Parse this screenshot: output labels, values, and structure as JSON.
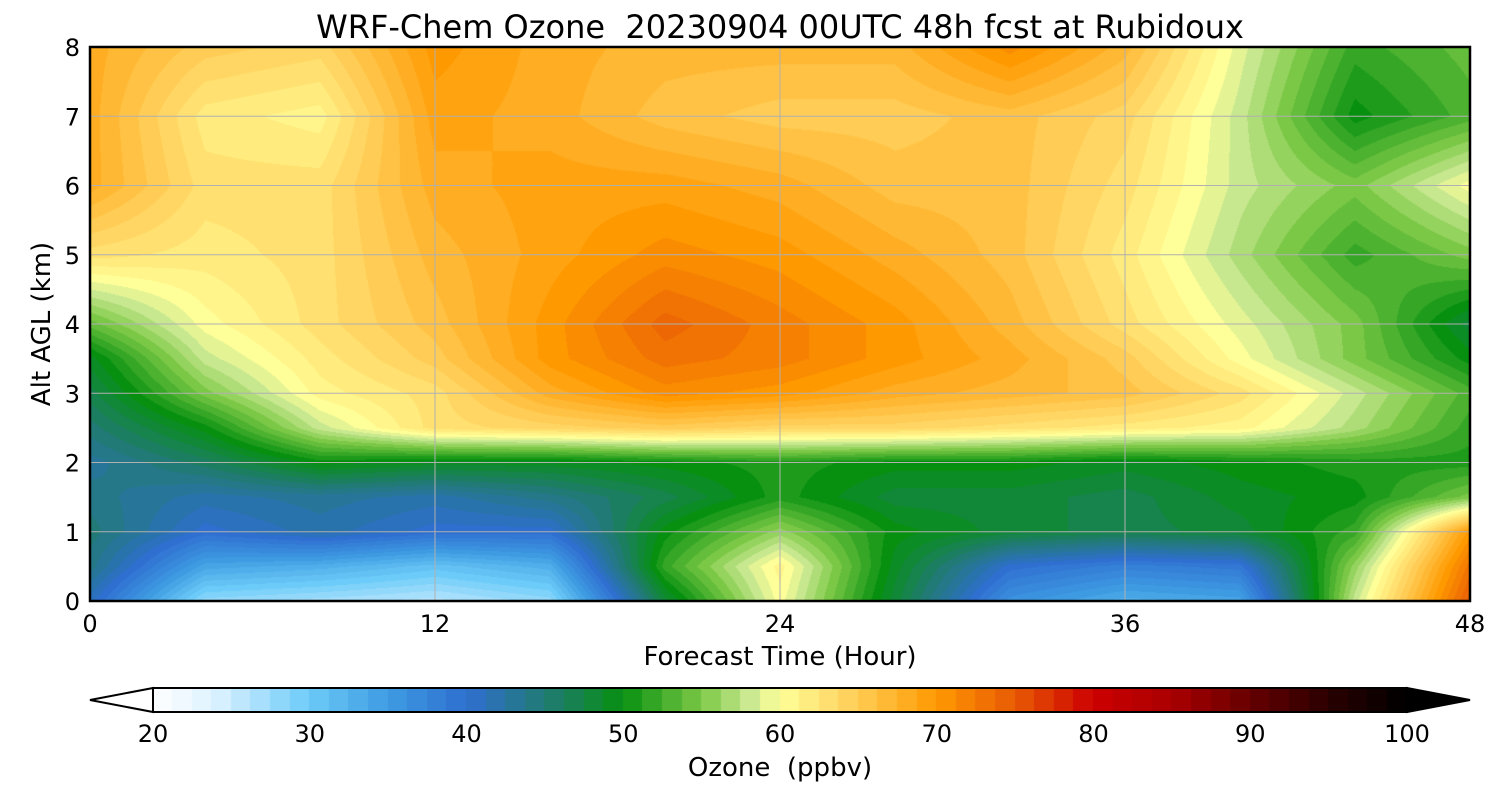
{
  "chart_data": {
    "type": "heatmap",
    "title": "WRF-Chem Ozone  20230904 00UTC 48h fcst at Rubidoux",
    "xlabel": "Forecast Time (Hour)",
    "ylabel": "Alt AGL (km)",
    "xlim": [
      0,
      48
    ],
    "ylim": [
      0,
      8
    ],
    "xticks": [
      0,
      12,
      24,
      36,
      48
    ],
    "yticks": [
      0,
      1,
      2,
      3,
      4,
      5,
      6,
      7,
      8
    ],
    "grid": true,
    "colorbar": {
      "label": "Ozone  (ppbv)",
      "range": [
        20,
        100
      ],
      "ticks": [
        20,
        30,
        40,
        50,
        60,
        70,
        80,
        90,
        100
      ],
      "extend": "both",
      "orientation": "horizontal",
      "placement": "bottom",
      "colors": [
        {
          "value": 20,
          "color": "#ffffff"
        },
        {
          "value": 24,
          "color": "#ddf2ff"
        },
        {
          "value": 30,
          "color": "#6ccbf8"
        },
        {
          "value": 35,
          "color": "#3e9be2"
        },
        {
          "value": 40,
          "color": "#2f6fd0"
        },
        {
          "value": 45,
          "color": "#217a75"
        },
        {
          "value": 50,
          "color": "#079010"
        },
        {
          "value": 55,
          "color": "#7bc846"
        },
        {
          "value": 58,
          "color": "#c8e890"
        },
        {
          "value": 60,
          "color": "#ffff99"
        },
        {
          "value": 65,
          "color": "#ffcc55"
        },
        {
          "value": 70,
          "color": "#ff9900"
        },
        {
          "value": 75,
          "color": "#e85a05"
        },
        {
          "value": 80,
          "color": "#cc0000"
        },
        {
          "value": 85,
          "color": "#aa0000"
        },
        {
          "value": 90,
          "color": "#660000"
        },
        {
          "value": 95,
          "color": "#2a0000"
        },
        {
          "value": 100,
          "color": "#000000"
        }
      ]
    },
    "x": [
      0,
      4,
      8,
      12,
      16,
      20,
      24,
      28,
      32,
      36,
      40,
      44,
      48
    ],
    "y": [
      0,
      0.5,
      1,
      1.5,
      2,
      2.5,
      3,
      3.5,
      4,
      5,
      6,
      7,
      8
    ],
    "z": [
      [
        41,
        28,
        27,
        26,
        28,
        48,
        60,
        48,
        36,
        33,
        34,
        58,
        75
      ],
      [
        44,
        34,
        33,
        31,
        33,
        52,
        61,
        49,
        40,
        38,
        39,
        56,
        73
      ],
      [
        45,
        40,
        42,
        40,
        40,
        50,
        56,
        50,
        48,
        47,
        48,
        52,
        70
      ],
      [
        44,
        42,
        43,
        42,
        44,
        47,
        51,
        48,
        48,
        47,
        49,
        50,
        55
      ],
      [
        43,
        46,
        50,
        49,
        49,
        50,
        51,
        50,
        50,
        49,
        50,
        51,
        51
      ],
      [
        45,
        50,
        58,
        63,
        64,
        65,
        64,
        64,
        63,
        62,
        61,
        57,
        52
      ],
      [
        47,
        55,
        61,
        63,
        68,
        71,
        70,
        68,
        67,
        66,
        63,
        58,
        53
      ],
      [
        49,
        58,
        62,
        65,
        70,
        73,
        72,
        70,
        68,
        65,
        60,
        55,
        50
      ],
      [
        54,
        60,
        63,
        66,
        70,
        74,
        72,
        70,
        67,
        63,
        59,
        55,
        48
      ],
      [
        63,
        62,
        63,
        67,
        69,
        71,
        70,
        68,
        66,
        62,
        57,
        52,
        55
      ],
      [
        68,
        63,
        63,
        68,
        69,
        69,
        68,
        66,
        66,
        63,
        58,
        55,
        60
      ],
      [
        68,
        62,
        61,
        69,
        68,
        66,
        65,
        65,
        66,
        64,
        58,
        50,
        53
      ],
      [
        68,
        65,
        64,
        70,
        68,
        67,
        67,
        67,
        71,
        67,
        59,
        52,
        54
      ]
    ]
  }
}
